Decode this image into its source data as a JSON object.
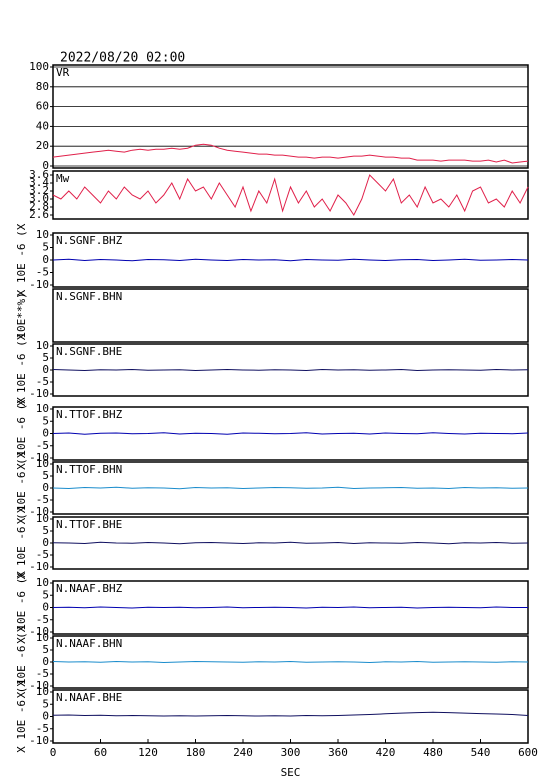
{
  "title": "2022/08/20 02:00",
  "chart_data": [
    {
      "type": "line",
      "title": "VR",
      "ylim": [
        0,
        100
      ],
      "yticks": [
        0,
        20,
        40,
        60,
        80,
        100
      ],
      "grid": true,
      "x": [
        0,
        10,
        20,
        30,
        40,
        50,
        60,
        70,
        80,
        90,
        100,
        110,
        120,
        130,
        140,
        150,
        160,
        170,
        180,
        190,
        200,
        210,
        220,
        230,
        240,
        250,
        260,
        270,
        280,
        290,
        300,
        310,
        320,
        330,
        340,
        350,
        360,
        370,
        380,
        390,
        400,
        410,
        420,
        430,
        440,
        450,
        460,
        470,
        480,
        490,
        500,
        510,
        520,
        530,
        540,
        550,
        560,
        570,
        580,
        590,
        600
      ],
      "series": [
        {
          "color": "#e0204a",
          "values": [
            9,
            10,
            11,
            12,
            13,
            14,
            15,
            16,
            15,
            14,
            16,
            17,
            16,
            17,
            17,
            18,
            17,
            18,
            21,
            22,
            21,
            18,
            16,
            15,
            14,
            13,
            12,
            12,
            11,
            11,
            10,
            9,
            9,
            8,
            9,
            9,
            8,
            9,
            10,
            10,
            11,
            10,
            9,
            9,
            8,
            8,
            6,
            6,
            6,
            5,
            6,
            6,
            6,
            5,
            5,
            6,
            4,
            6,
            3,
            4,
            5
          ]
        }
      ]
    },
    {
      "type": "line",
      "title": "Mw",
      "ylim": [
        2.55,
        3.65
      ],
      "yticks": [
        2.6,
        2.8,
        {
          "value": 3,
          "label": "3.0"
        },
        3.2,
        3.4,
        3.6
      ],
      "grid": false,
      "x": [
        0,
        10,
        20,
        30,
        40,
        50,
        60,
        70,
        80,
        90,
        100,
        110,
        120,
        130,
        140,
        150,
        160,
        170,
        180,
        190,
        200,
        210,
        220,
        230,
        240,
        250,
        260,
        270,
        280,
        290,
        300,
        310,
        320,
        330,
        340,
        350,
        360,
        370,
        380,
        390,
        400,
        410,
        420,
        430,
        440,
        450,
        460,
        470,
        480,
        490,
        500,
        510,
        520,
        530,
        540,
        550,
        560,
        570,
        580,
        590,
        600
      ],
      "series": [
        {
          "color": "#e0204a",
          "values": [
            3.1,
            3.0,
            3.2,
            3.0,
            3.3,
            3.1,
            2.9,
            3.2,
            3.0,
            3.3,
            3.1,
            3.0,
            3.2,
            2.9,
            3.1,
            3.4,
            3.0,
            3.5,
            3.2,
            3.3,
            3.0,
            3.4,
            3.1,
            2.8,
            3.3,
            2.7,
            3.2,
            2.9,
            3.5,
            2.7,
            3.3,
            2.9,
            3.2,
            2.8,
            3.0,
            2.7,
            3.1,
            2.9,
            2.6,
            3.0,
            3.6,
            3.4,
            3.2,
            3.5,
            2.9,
            3.1,
            2.8,
            3.3,
            2.9,
            3.0,
            2.8,
            3.1,
            2.7,
            3.2,
            3.3,
            2.9,
            3.0,
            2.8,
            3.2,
            2.9,
            3.3
          ]
        }
      ]
    },
    {
      "type": "line",
      "title": "N.SGNF.BHZ",
      "ylabel": "X 10E -6 (X",
      "ylim": [
        -10,
        10
      ],
      "yticks": [
        -10,
        -5,
        0,
        5,
        10
      ],
      "grid": false,
      "x": [
        0,
        20,
        40,
        60,
        80,
        100,
        120,
        140,
        160,
        180,
        200,
        220,
        240,
        260,
        280,
        300,
        320,
        340,
        360,
        380,
        400,
        420,
        440,
        460,
        480,
        500,
        520,
        540,
        560,
        580,
        600
      ],
      "series": [
        {
          "color": "#0000b0",
          "values": [
            0,
            0.3,
            -0.2,
            0.2,
            0,
            -0.3,
            0.2,
            0.1,
            -0.2,
            0.3,
            0,
            -0.2,
            0.2,
            0,
            0.1,
            -0.3,
            0.2,
            0,
            -0.1,
            0.3,
            0,
            -0.2,
            0.1,
            0.2,
            -0.2,
            0,
            0.3,
            -0.1,
            0,
            0.2,
            0
          ]
        }
      ]
    },
    {
      "type": "line",
      "title": "N.SGNF.BHN",
      "ylabel": "10E**%)",
      "series": []
    },
    {
      "type": "line",
      "title": "N.SGNF.BHE",
      "ylabel": "X 10E -6 (X",
      "ylim": [
        -10,
        10
      ],
      "yticks": [
        -10,
        -5,
        0,
        5,
        10
      ],
      "grid": false,
      "x": [
        0,
        20,
        40,
        60,
        80,
        100,
        120,
        140,
        160,
        180,
        200,
        220,
        240,
        260,
        280,
        300,
        320,
        340,
        360,
        380,
        400,
        420,
        440,
        460,
        480,
        500,
        520,
        540,
        560,
        580,
        600
      ],
      "series": [
        {
          "color": "#101060",
          "values": [
            0.2,
            0,
            -0.2,
            0.1,
            0,
            0.2,
            -0.1,
            0,
            0.1,
            -0.2,
            0,
            0.2,
            0,
            -0.1,
            0.1,
            0,
            -0.2,
            0.2,
            0,
            0.1,
            -0.1,
            0,
            0.2,
            -0.2,
            0,
            0.1,
            0,
            -0.1,
            0.2,
            0,
            0.1
          ]
        }
      ]
    },
    {
      "type": "line",
      "title": "N.TTOF.BHZ",
      "ylabel": "X 10E -6 (X",
      "ylim": [
        -10,
        10
      ],
      "yticks": [
        -10,
        -5,
        0,
        5,
        10
      ],
      "grid": false,
      "x": [
        0,
        20,
        40,
        60,
        80,
        100,
        120,
        140,
        160,
        180,
        200,
        220,
        240,
        260,
        280,
        300,
        320,
        340,
        360,
        380,
        400,
        420,
        440,
        460,
        480,
        500,
        520,
        540,
        560,
        580,
        600
      ],
      "series": [
        {
          "color": "#0000b0",
          "values": [
            0,
            0.2,
            -0.3,
            0.1,
            0.2,
            -0.1,
            0,
            0.3,
            -0.2,
            0.1,
            0,
            -0.3,
            0.2,
            0.1,
            -0.1,
            0,
            0.3,
            -0.2,
            0,
            0.1,
            -0.2,
            0.2,
            0,
            -0.1,
            0.3,
            0,
            -0.2,
            0.1,
            0,
            -0.1,
            0.2
          ]
        }
      ]
    },
    {
      "type": "line",
      "title": "N.TTOF.BHN",
      "ylabel": "X 10E -6 (X",
      "ylim": [
        -10,
        10
      ],
      "yticks": [
        -10,
        -5,
        0,
        5,
        10
      ],
      "grid": false,
      "x": [
        0,
        20,
        40,
        60,
        80,
        100,
        120,
        140,
        160,
        180,
        200,
        220,
        240,
        260,
        280,
        300,
        320,
        340,
        360,
        380,
        400,
        420,
        440,
        460,
        480,
        500,
        520,
        540,
        560,
        580,
        600
      ],
      "series": [
        {
          "color": "#1a8ccc",
          "values": [
            0,
            -0.2,
            0.2,
            0,
            0.3,
            -0.1,
            0.1,
            0,
            -0.3,
            0.2,
            0,
            0.1,
            -0.2,
            0,
            0.2,
            0.1,
            -0.1,
            0,
            0.3,
            -0.2,
            0,
            0.1,
            0.2,
            -0.1,
            0,
            -0.2,
            0.2,
            0,
            0.1,
            -0.1,
            0
          ]
        }
      ]
    },
    {
      "type": "line",
      "title": "N.TTOF.BHE",
      "ylabel": "X 10E -6 (X",
      "ylim": [
        -10,
        10
      ],
      "yticks": [
        -10,
        -5,
        0,
        5,
        10
      ],
      "grid": false,
      "x": [
        0,
        20,
        40,
        60,
        80,
        100,
        120,
        140,
        160,
        180,
        200,
        220,
        240,
        260,
        280,
        300,
        320,
        340,
        360,
        380,
        400,
        420,
        440,
        460,
        480,
        500,
        520,
        540,
        560,
        580,
        600
      ],
      "series": [
        {
          "color": "#101060",
          "values": [
            0.1,
            0,
            -0.2,
            0.3,
            0,
            -0.1,
            0.2,
            0,
            -0.3,
            0.1,
            0.2,
            0,
            -0.2,
            0.1,
            0,
            0.3,
            -0.1,
            0,
            0.2,
            -0.2,
            0.1,
            0,
            -0.1,
            0.2,
            0,
            -0.3,
            0.1,
            0,
            0.2,
            -0.1,
            0
          ]
        }
      ]
    },
    {
      "type": "line",
      "title": "N.NAAF.BHZ",
      "ylabel": "X 10E -6 (X",
      "ylim": [
        -10,
        10
      ],
      "yticks": [
        -10,
        -5,
        0,
        5,
        10
      ],
      "grid": false,
      "x": [
        0,
        20,
        40,
        60,
        80,
        100,
        120,
        140,
        160,
        180,
        200,
        220,
        240,
        260,
        280,
        300,
        320,
        340,
        360,
        380,
        400,
        420,
        440,
        460,
        480,
        500,
        520,
        540,
        560,
        580,
        600
      ],
      "series": [
        {
          "color": "#0000b0",
          "values": [
            0,
            0.1,
            -0.1,
            0.2,
            0,
            -0.2,
            0.1,
            0,
            0.1,
            -0.1,
            0,
            0.2,
            -0.1,
            0,
            0.1,
            0,
            -0.2,
            0.1,
            0,
            0.2,
            -0.1,
            0,
            0.1,
            -0.2,
            0,
            0.1,
            0,
            -0.1,
            0.2,
            0,
            0
          ]
        }
      ]
    },
    {
      "type": "line",
      "title": "N.NAAF.BHN",
      "ylabel": "X 10E -6 (X",
      "ylim": [
        -10,
        10
      ],
      "yticks": [
        -10,
        -5,
        0,
        5,
        10
      ],
      "grid": false,
      "x": [
        0,
        20,
        40,
        60,
        80,
        100,
        120,
        140,
        160,
        180,
        200,
        220,
        240,
        260,
        280,
        300,
        320,
        340,
        360,
        380,
        400,
        420,
        440,
        460,
        480,
        500,
        520,
        540,
        560,
        580,
        600
      ],
      "series": [
        {
          "color": "#1a8ccc",
          "values": [
            0.2,
            0,
            0.1,
            -0.1,
            0.2,
            0,
            0.1,
            -0.2,
            0,
            0.2,
            0.1,
            0,
            -0.1,
            0.1,
            0,
            0.2,
            -0.1,
            0,
            0.1,
            0,
            -0.2,
            0.1,
            0,
            0.2,
            -0.1,
            0,
            0.1,
            0,
            -0.1,
            0.1,
            0
          ]
        }
      ]
    },
    {
      "type": "line",
      "title": "N.NAAF.BHE",
      "ylabel": "X 10E -6 (X",
      "ylim": [
        -10,
        10
      ],
      "yticks": [
        -10,
        -5,
        0,
        5,
        10
      ],
      "grid": false,
      "xlim": [
        0,
        600
      ],
      "xticks": [
        0,
        60,
        120,
        180,
        240,
        300,
        360,
        420,
        480,
        540,
        600
      ],
      "xlabel": "SEC",
      "x": [
        0,
        20,
        40,
        60,
        80,
        100,
        120,
        140,
        160,
        180,
        200,
        220,
        240,
        260,
        280,
        300,
        320,
        340,
        360,
        380,
        400,
        420,
        440,
        460,
        480,
        500,
        520,
        540,
        560,
        580,
        600
      ],
      "series": [
        {
          "color": "#101060",
          "values": [
            0.5,
            0.6,
            0.4,
            0.5,
            0.3,
            0.4,
            0.3,
            0.2,
            0.3,
            0.2,
            0.3,
            0.4,
            0.3,
            0.2,
            0.3,
            0.2,
            0.4,
            0.3,
            0.4,
            0.6,
            0.8,
            1.1,
            1.4,
            1.6,
            1.7,
            1.6,
            1.4,
            1.2,
            1.0,
            0.8,
            0.4
          ]
        }
      ]
    }
  ]
}
